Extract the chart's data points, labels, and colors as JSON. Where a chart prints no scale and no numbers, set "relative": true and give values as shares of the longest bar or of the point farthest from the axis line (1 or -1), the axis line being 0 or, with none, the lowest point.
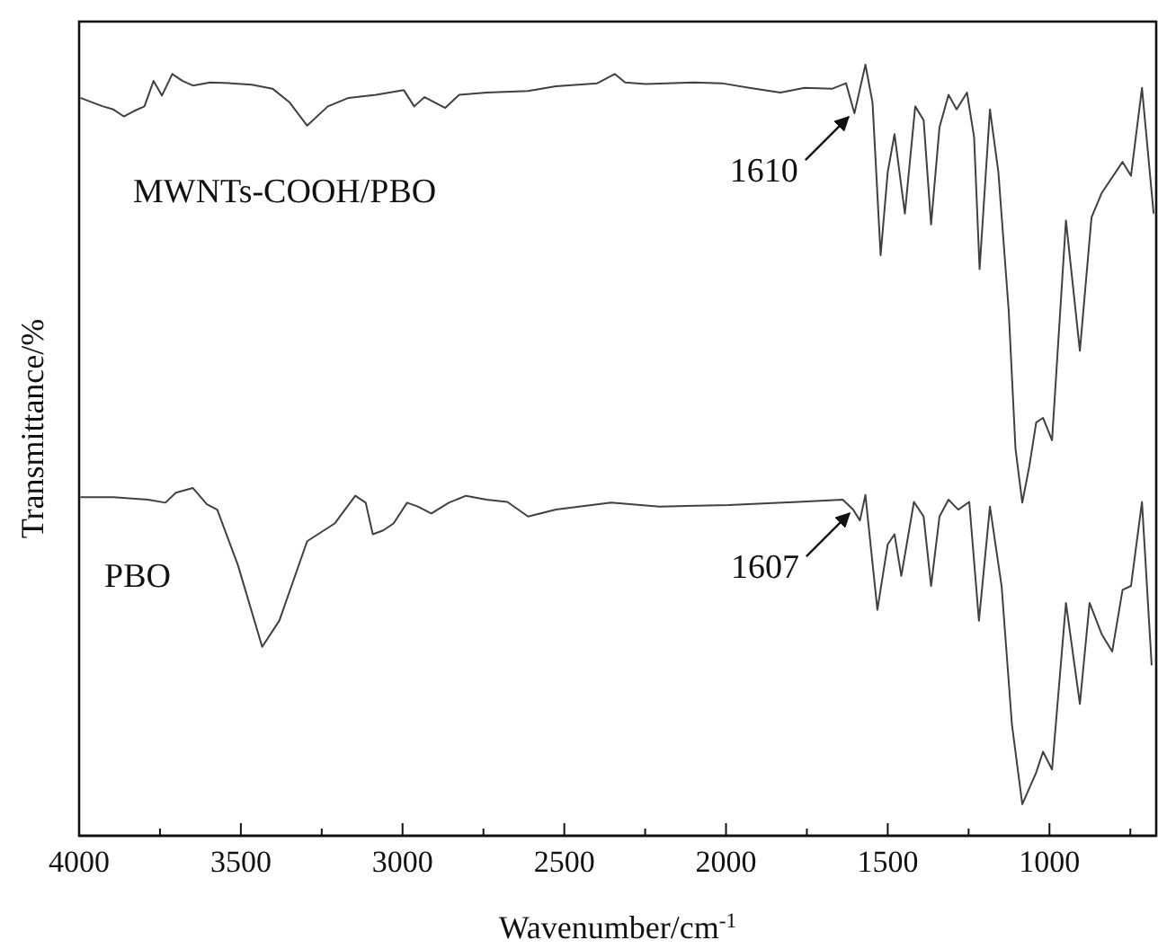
{
  "chart_data": {
    "type": "line",
    "relative": true,
    "xlabel": "Wavenumber/cm$^{-1}$",
    "ylabel": "Transmittance/%",
    "xlim": [
      4000,
      670
    ],
    "xticks": [
      4000,
      {
        "value": 3750,
        "label": null
      },
      3500,
      {
        "value": 3250,
        "label": null
      },
      3000,
      {
        "value": 2750,
        "label": null
      },
      2500,
      {
        "value": 2250,
        "label": null
      },
      2000,
      {
        "value": 1750,
        "label": null
      },
      1500,
      {
        "value": 1250,
        "label": null
      },
      1000,
      {
        "value": 750,
        "label": null
      }
    ],
    "marker": "none",
    "line_style": "solid",
    "annotations": [
      {
        "text": "1610",
        "x": 1610,
        "y": 0.937
      },
      {
        "text": "1607",
        "x": 1607,
        "y": 0.423
      }
    ],
    "series": [
      {
        "name": "MWNTs-COOH/PBO",
        "color": "#404040",
        "x": [
          3996,
          3958,
          3926,
          3894,
          3862,
          3830,
          3798,
          3770,
          3744,
          3712,
          3680,
          3648,
          3595,
          3530,
          3466,
          3402,
          3349,
          3295,
          3231,
          3167,
          3082,
          2996,
          2964,
          2932,
          2868,
          2825,
          2740,
          2612,
          2526,
          2398,
          2344,
          2312,
          2248,
          2099,
          2013,
          1928,
          1832,
          1757,
          1671,
          1629,
          1603,
          1569,
          1547,
          1522,
          1500,
          1479,
          1447,
          1415,
          1389,
          1366,
          1340,
          1312,
          1287,
          1255,
          1233,
          1216,
          1184,
          1158,
          1126,
          1105,
          1084,
          1062,
          1041,
          1020,
          992,
          949,
          906,
          870,
          838,
          774,
          748,
          714,
          678
        ],
        "values": [
          0.957,
          0.951,
          0.946,
          0.942,
          0.933,
          0.94,
          0.946,
          0.979,
          0.96,
          0.988,
          0.979,
          0.973,
          0.977,
          0.976,
          0.974,
          0.969,
          0.951,
          0.921,
          0.946,
          0.957,
          0.961,
          0.967,
          0.946,
          0.958,
          0.944,
          0.961,
          0.964,
          0.966,
          0.972,
          0.976,
          0.988,
          0.977,
          0.975,
          0.977,
          0.976,
          0.97,
          0.964,
          0.97,
          0.969,
          0.976,
          0.937,
          1.0,
          0.951,
          0.753,
          0.861,
          0.91,
          0.807,
          0.946,
          0.928,
          0.793,
          0.919,
          0.961,
          0.942,
          0.964,
          0.906,
          0.735,
          0.942,
          0.861,
          0.681,
          0.502,
          0.432,
          0.48,
          0.536,
          0.542,
          0.513,
          0.798,
          0.629,
          0.802,
          0.834,
          0.874,
          0.856,
          0.97,
          0.807
        ]
      },
      {
        "name": "PBO",
        "color": "#404040",
        "x": [
          3996,
          3894,
          3787,
          3733,
          3701,
          3648,
          3605,
          3573,
          3509,
          3434,
          3381,
          3295,
          3210,
          3146,
          3114,
          3092,
          3060,
          3028,
          2986,
          2953,
          2911,
          2857,
          2804,
          2740,
          2676,
          2612,
          2526,
          2355,
          2206,
          1992,
          1778,
          1639,
          1607,
          1586,
          1569,
          1532,
          1500,
          1479,
          1458,
          1419,
          1389,
          1366,
          1340,
          1312,
          1282,
          1248,
          1218,
          1184,
          1148,
          1116,
          1084,
          1041,
          1020,
          992,
          949,
          906,
          876,
          838,
          806,
          774,
          748,
          714,
          684
        ],
        "values": [
          0.439,
          0.439,
          0.436,
          0.432,
          0.445,
          0.451,
          0.43,
          0.423,
          0.351,
          0.245,
          0.279,
          0.382,
          0.405,
          0.441,
          0.432,
          0.391,
          0.396,
          0.405,
          0.432,
          0.427,
          0.418,
          0.432,
          0.441,
          0.436,
          0.433,
          0.414,
          0.423,
          0.432,
          0.427,
          0.429,
          0.433,
          0.436,
          0.423,
          0.409,
          0.442,
          0.293,
          0.378,
          0.391,
          0.337,
          0.433,
          0.414,
          0.324,
          0.414,
          0.436,
          0.423,
          0.433,
          0.279,
          0.427,
          0.324,
          0.144,
          0.041,
          0.082,
          0.109,
          0.086,
          0.302,
          0.171,
          0.302,
          0.261,
          0.239,
          0.319,
          0.324,
          0.433,
          0.221
        ]
      }
    ]
  }
}
